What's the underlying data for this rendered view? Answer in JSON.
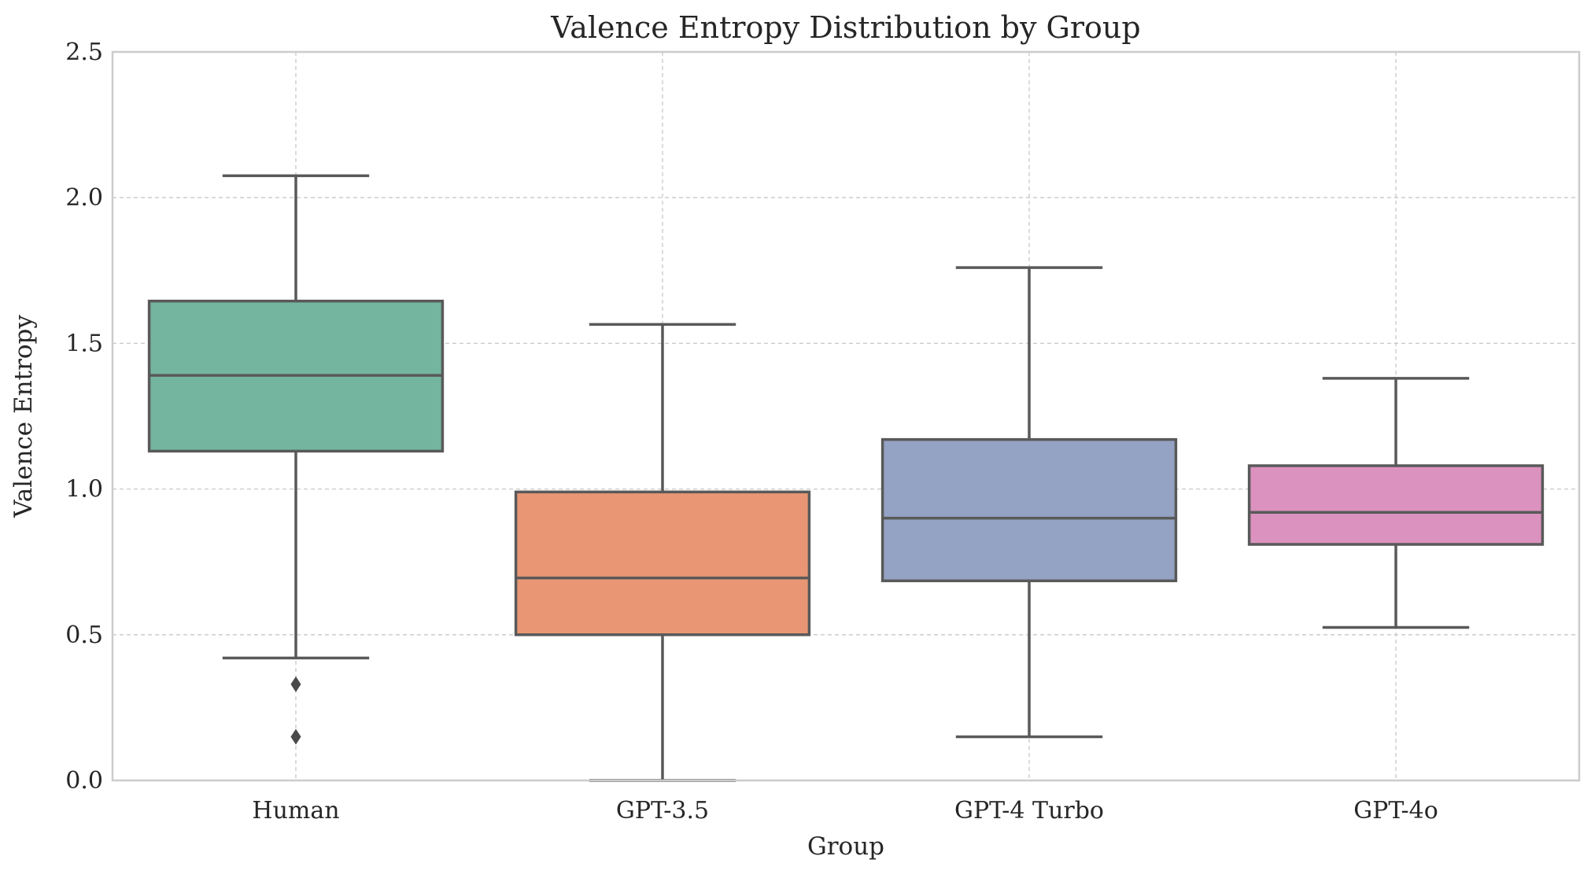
{
  "chart_data": {
    "type": "box",
    "title": "Valence Entropy Distribution by Group",
    "xlabel": "Group",
    "ylabel": "Valence Entropy",
    "ylim": [
      0,
      2.5
    ],
    "yticks": [
      0.0,
      0.5,
      1.0,
      1.5,
      2.0,
      2.5
    ],
    "ytick_labels": [
      "0.0",
      "0.5",
      "1.0",
      "1.5",
      "2.0",
      "2.5"
    ],
    "grid": true,
    "categories": [
      "Human",
      "GPT-3.5",
      "GPT-4 Turbo",
      "GPT-4o"
    ],
    "groups": [
      {
        "name": "Human",
        "color": "#74b59f",
        "whisker_low": 0.42,
        "q1": 1.13,
        "median": 1.39,
        "q3": 1.645,
        "whisker_high": 2.075,
        "outliers": [
          0.33,
          0.15
        ]
      },
      {
        "name": "GPT-3.5",
        "color": "#e89674",
        "whisker_low": 0.0,
        "q1": 0.5,
        "median": 0.695,
        "q3": 0.99,
        "whisker_high": 1.565,
        "outliers": []
      },
      {
        "name": "GPT-4 Turbo",
        "color": "#94a3c4",
        "whisker_low": 0.15,
        "q1": 0.685,
        "median": 0.9,
        "q3": 1.17,
        "whisker_high": 1.76,
        "outliers": []
      },
      {
        "name": "GPT-4o",
        "color": "#db92be",
        "whisker_low": 0.525,
        "q1": 0.81,
        "median": 0.92,
        "q3": 1.08,
        "whisker_high": 1.38,
        "outliers": []
      }
    ]
  }
}
